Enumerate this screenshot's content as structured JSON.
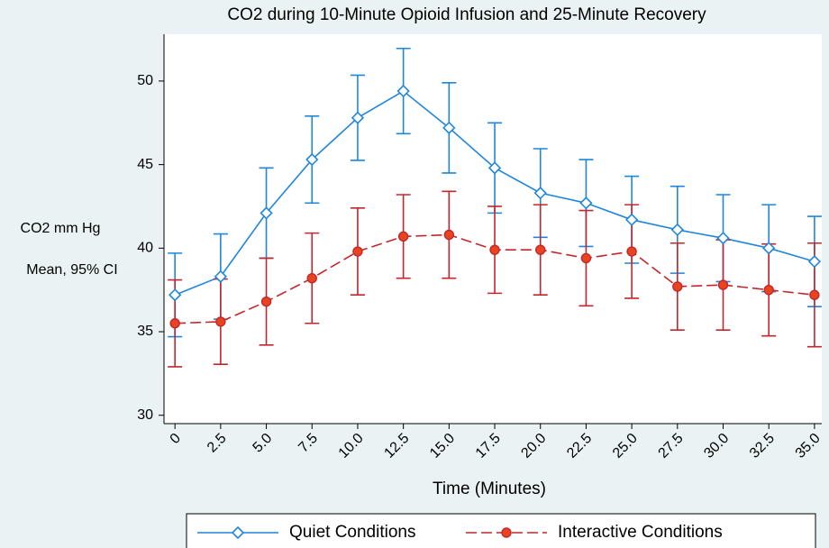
{
  "chart_data": {
    "type": "line",
    "title": "CO2 during 10-Minute Opioid Infusion and 25-Minute Recovery",
    "x_label": "Time (Minutes)",
    "y_label": [
      "CO2 mm Hg",
      "Mean, 95% CI"
    ],
    "x": [
      0,
      2.5,
      5,
      7.5,
      10,
      12.5,
      15,
      17.5,
      20,
      22.5,
      25,
      27.5,
      30,
      32.5,
      35
    ],
    "xlim": [
      -0.6,
      35.4
    ],
    "xticks": [
      0,
      2.5,
      {
        "value": 5,
        "label": "5.0"
      },
      7.5,
      {
        "value": 10,
        "label": "10.0"
      },
      12.5,
      {
        "value": 15,
        "label": "15.0"
      },
      17.5,
      {
        "value": 20,
        "label": "20.0"
      },
      22.5,
      {
        "value": 25,
        "label": "25.0"
      },
      27.5,
      {
        "value": 30,
        "label": "30.0"
      },
      32.5,
      {
        "value": 35,
        "label": "35.0"
      }
    ],
    "ylim": [
      29.5,
      52.8
    ],
    "yticks": [
      30,
      35,
      40,
      45,
      50
    ],
    "legend": "bottom",
    "series": [
      {
        "name": "Quiet Conditions",
        "color": "#1f86dc",
        "marker": "diamond",
        "dash": "solid",
        "values": [
          37.2,
          38.3,
          42.1,
          45.3,
          47.8,
          49.4,
          47.2,
          44.8,
          43.3,
          42.7,
          41.7,
          41.1,
          40.6,
          40.0,
          39.2
        ],
        "error": [
          2.5,
          2.55,
          2.7,
          2.6,
          2.55,
          2.55,
          2.7,
          2.7,
          2.65,
          2.6,
          2.6,
          2.6,
          2.6,
          2.6,
          2.7
        ]
      },
      {
        "name": "Interactive Conditions",
        "color": "#c2272d",
        "marker": "circle",
        "dash": "dashed",
        "values": [
          35.5,
          35.6,
          36.8,
          38.2,
          39.8,
          40.7,
          40.8,
          39.9,
          39.9,
          39.4,
          39.8,
          37.7,
          37.8,
          37.5,
          37.2
        ],
        "error": [
          2.6,
          2.55,
          2.6,
          2.7,
          2.6,
          2.5,
          2.6,
          2.6,
          2.7,
          2.85,
          2.8,
          2.6,
          2.7,
          2.75,
          3.1
        ]
      }
    ]
  }
}
